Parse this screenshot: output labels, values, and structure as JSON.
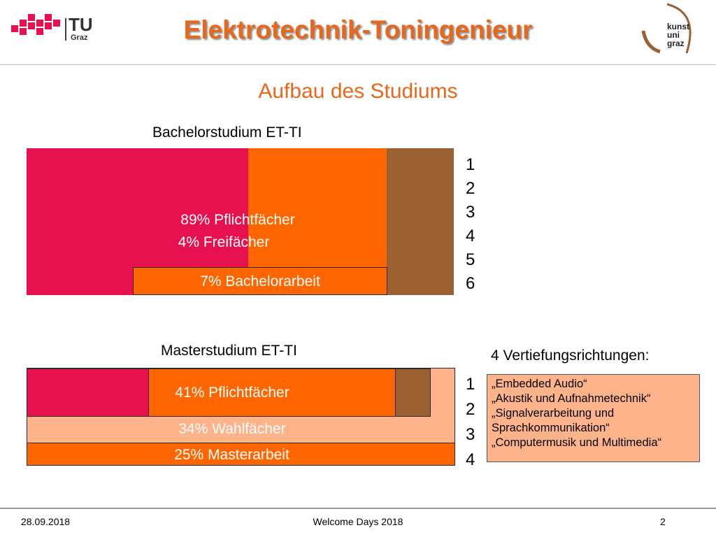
{
  "header": {
    "title": "Elektrotechnik-Toningenieur",
    "subtitle": "Aufbau des Studiums",
    "logo_left": {
      "text": "TU",
      "subtext": "Graz",
      "color": "#e8114f"
    },
    "logo_right": {
      "lines": [
        "kunst",
        "uni",
        "graz"
      ],
      "color": "#9c6132"
    }
  },
  "bachelor": {
    "heading": "Bachelorstudium ET-TI",
    "text_line1": "89% Pflichtfächer",
    "text_line2": "4% Freifächer",
    "thesis": "7% Bachelorarbeit",
    "semesters": [
      "1",
      "2",
      "3",
      "4",
      "5",
      "6"
    ]
  },
  "master": {
    "heading": "Masterstudium ET-TI",
    "core": "41% Pflichtfächer",
    "electives": "34% Wahlfächer",
    "thesis": "25% Masterarbeit",
    "semesters": [
      "1",
      "2",
      "3",
      "4"
    ]
  },
  "specializations": {
    "heading": "4 Vertiefungsrichtungen:",
    "items": [
      "„Embedded Audio“",
      "„Akustik und Aufnahmetechnik“",
      "„Signalverarbeitung und",
      "Sprachkommunikation“",
      "„Computermusik und Multimedia“"
    ]
  },
  "footer": {
    "date": "28.09.2018",
    "event": "Welcome Days 2018",
    "page": "2"
  },
  "colors": {
    "accent": "#e8671b",
    "red": "#e8114f",
    "orange": "#ff6600",
    "brown": "#9c6132",
    "peach": "#ffb38a"
  }
}
